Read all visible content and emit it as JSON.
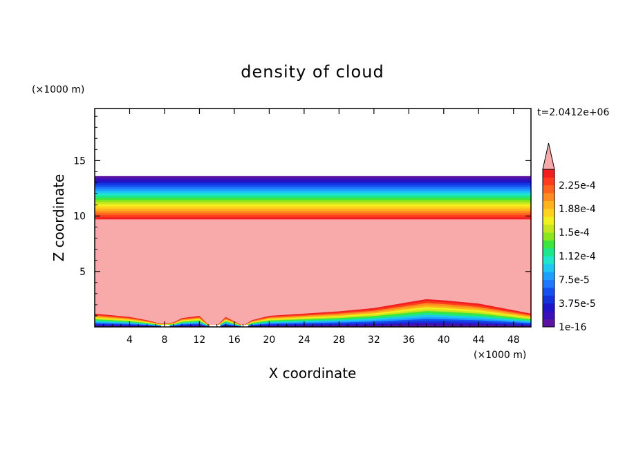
{
  "chart_data": {
    "type": "heatmap",
    "title": "density of cloud",
    "xlabel": "X coordinate",
    "ylabel": "Z coordinate",
    "x_unit": "(×1000 m)",
    "y_unit": "(×1000 m)",
    "time_label": "t=2.0412e+06",
    "xlim": [
      0,
      50
    ],
    "ylim": [
      0,
      19.7
    ],
    "x_ticks": [
      4,
      8,
      12,
      16,
      20,
      24,
      28,
      32,
      36,
      40,
      44,
      48
    ],
    "y_ticks": [
      5,
      10,
      15
    ],
    "x_tick_labels": [
      "4",
      "8",
      "12",
      "16",
      "20",
      "24",
      "28",
      "32",
      "36",
      "40",
      "44",
      "48"
    ],
    "y_tick_labels": [
      "5",
      "10",
      "15"
    ],
    "grid": false,
    "colorbar": {
      "labels": [
        "1e-16",
        "3.75e-5",
        "7.5e-5",
        "1.12e-4",
        "1.5e-4",
        "1.88e-4",
        "2.25e-4"
      ],
      "levels": [
        1e-16,
        3.75e-05,
        7.5e-05,
        0.000112,
        0.00015,
        0.000188,
        0.000225
      ],
      "colors": [
        "#5a14a0",
        "#3c10b8",
        "#1e14c8",
        "#1432dc",
        "#1450f0",
        "#2078ff",
        "#1ea0ff",
        "#1ec8f0",
        "#1ee6c8",
        "#1ee68c",
        "#3ce63c",
        "#8ce61e",
        "#c8e61e",
        "#f0f01e",
        "#ffd21e",
        "#ffb41e",
        "#ff8c1e",
        "#ff641e",
        "#ff3c1e",
        "#f01e1e"
      ],
      "over_color": "#f8aaaa",
      "extend": "max"
    },
    "fields": {
      "background_value": "above-range",
      "layer_top_z": 13.6,
      "layer_dense_top_z": 9.7,
      "surface_profile_x": [
        0,
        4,
        6,
        7.5,
        9,
        10,
        11,
        12,
        13,
        14,
        15,
        16,
        17,
        18,
        20,
        24,
        28,
        32,
        35,
        38,
        40,
        44,
        48,
        50
      ],
      "surface_profile_z": [
        1.2,
        0.9,
        0.6,
        0.3,
        0.4,
        0.8,
        0.9,
        1.0,
        0.2,
        0.1,
        0.9,
        0.5,
        0.1,
        0.6,
        1.0,
        1.2,
        1.4,
        1.7,
        2.1,
        2.5,
        2.4,
        2.1,
        1.5,
        1.2
      ]
    }
  }
}
